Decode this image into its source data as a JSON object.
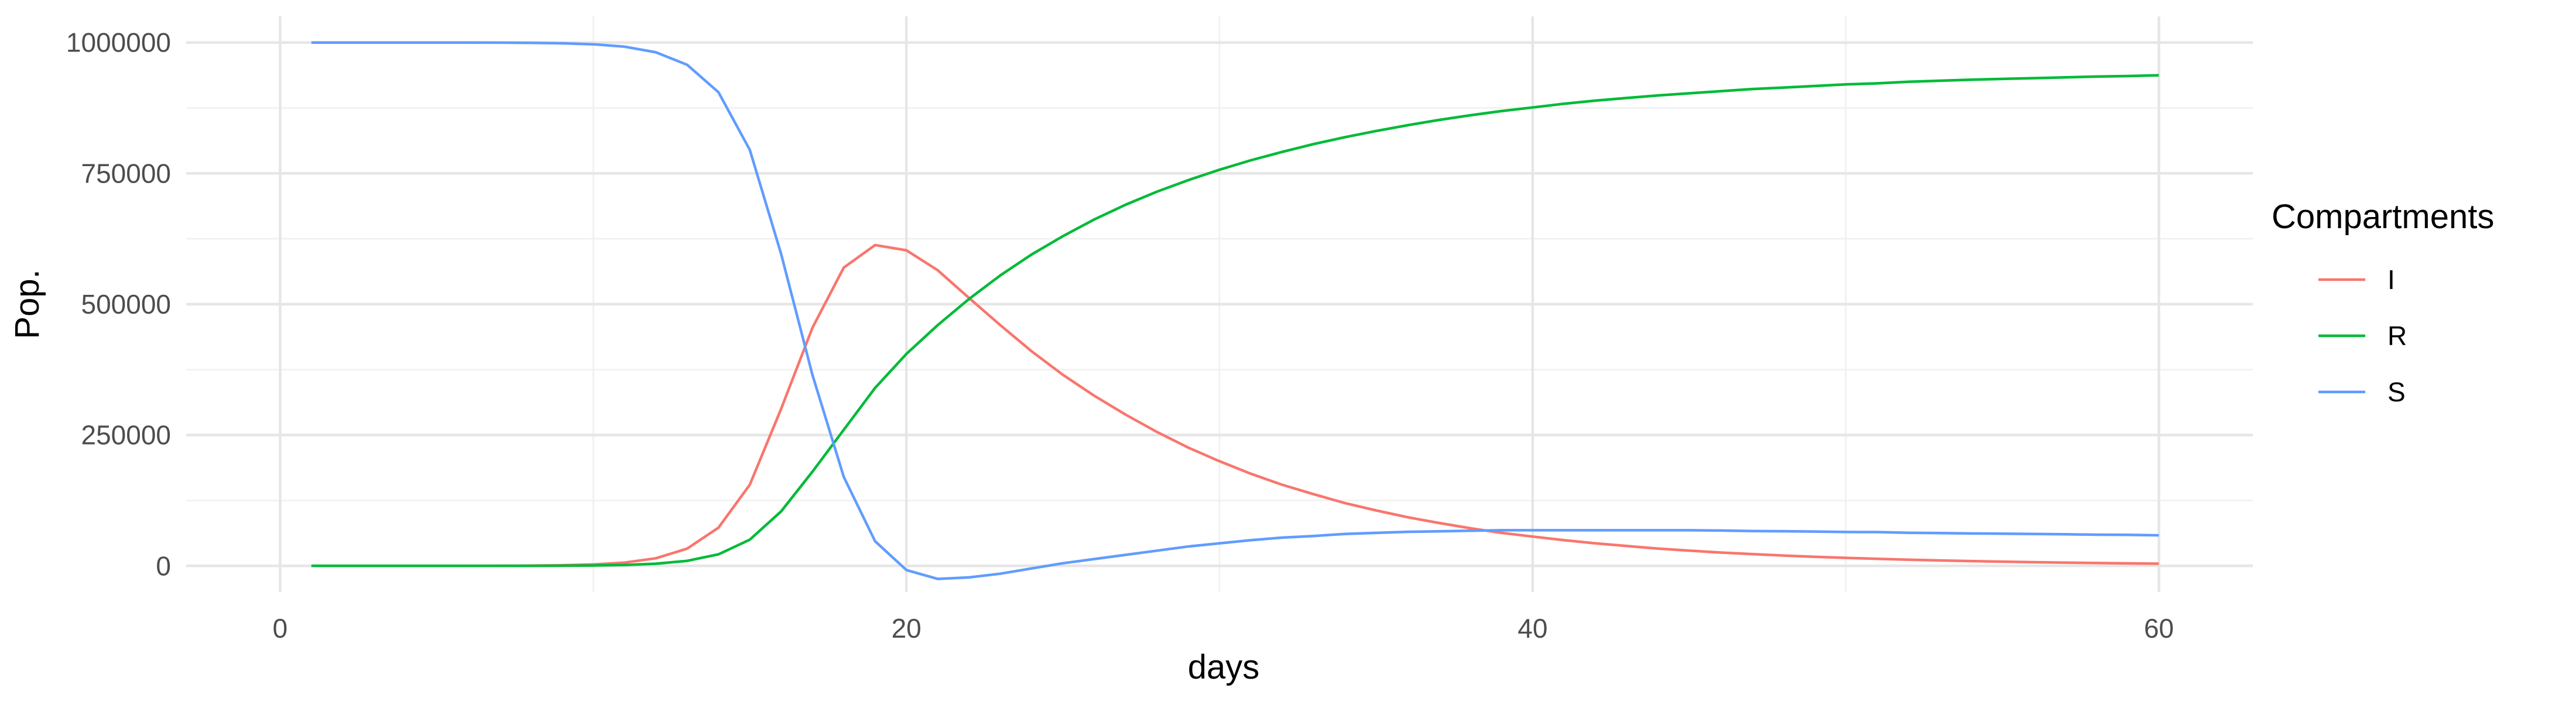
{
  "chart_data": {
    "type": "line",
    "title": "",
    "xlabel": "days",
    "ylabel": "Pop.",
    "xlim": [
      -3,
      63
    ],
    "ylim": [
      -50000,
      1050000
    ],
    "grid": true,
    "x_major_ticks": [
      0,
      20,
      40,
      60
    ],
    "x_minor_ticks": [
      10,
      30,
      50
    ],
    "x_tick_labels": [
      "0",
      "20",
      "40",
      "60"
    ],
    "y_major_ticks": [
      0,
      250000,
      500000,
      750000,
      1000000
    ],
    "y_minor_ticks": [
      125000,
      375000,
      625000,
      875000
    ],
    "y_tick_labels": [
      "0",
      "250000",
      "500000",
      "750000",
      "1000000"
    ],
    "legend": {
      "title": "Compartments",
      "placement": "right"
    },
    "x": [
      1,
      2,
      3,
      4,
      5,
      6,
      7,
      8,
      9,
      10,
      11,
      12,
      13,
      14,
      15,
      16,
      17,
      18,
      19,
      20,
      21,
      22,
      23,
      24,
      25,
      26,
      27,
      28,
      29,
      30,
      31,
      32,
      33,
      34,
      35,
      36,
      37,
      38,
      39,
      40,
      41,
      42,
      43,
      44,
      45,
      46,
      47,
      48,
      49,
      50,
      51,
      52,
      53,
      54,
      55,
      56,
      57,
      58,
      59,
      60
    ],
    "series": [
      {
        "name": "I",
        "color": "#F8766D",
        "values": [
          1,
          2,
          5,
          12,
          30,
          75,
          180,
          440,
          1070,
          2600,
          6200,
          14500,
          33000,
          73000,
          155000,
          300000,
          455000,
          570000,
          613000,
          603000,
          565000,
          512000,
          460000,
          410000,
          365000,
          325000,
          289000,
          256000,
          226000,
          200000,
          176000,
          155000,
          137000,
          120000,
          106000,
          93000,
          82000,
          72000,
          63000,
          56000,
          49000,
          43000,
          38000,
          33000,
          29000,
          25500,
          22500,
          19800,
          17400,
          15300,
          13400,
          11800,
          10400,
          9100,
          8000,
          7000,
          6200,
          5400,
          4800,
          4200
        ]
      },
      {
        "name": "R",
        "color": "#00BA38",
        "values": [
          0,
          0,
          1,
          3,
          8,
          20,
          50,
          120,
          300,
          720,
          1700,
          4100,
          9600,
          22000,
          50000,
          104000,
          180000,
          260000,
          340000,
          405000,
          460000,
          510000,
          555000,
          595000,
          630000,
          662000,
          690000,
          715000,
          737000,
          757000,
          775000,
          791000,
          806000,
          819000,
          831000,
          842000,
          852000,
          861000,
          869000,
          876000,
          883000,
          889000,
          894000,
          899000,
          903000,
          907000,
          911000,
          914000,
          917000,
          920000,
          922000,
          925000,
          927000,
          929000,
          930500,
          932000,
          933500,
          935000,
          936000,
          937500
        ]
      },
      {
        "name": "S",
        "color": "#619CFF",
        "values": [
          999999,
          999998,
          999994,
          999985,
          999962,
          999905,
          999770,
          999440,
          998630,
          996680,
          992100,
          981400,
          957400,
          905000,
          795000,
          596000,
          365000,
          170000,
          47000,
          -8000,
          -25000,
          -22000,
          -15000,
          -5000,
          5000,
          13000,
          21000,
          29000,
          37000,
          43000,
          49000,
          54000,
          57000,
          61000,
          63000,
          65000,
          66000,
          67000,
          68000,
          68000,
          68000,
          68000,
          68000,
          68000,
          68000,
          67500,
          66500,
          66200,
          65600,
          64700,
          64600,
          63200,
          62600,
          61900,
          61500,
          61000,
          60300,
          59600,
          59200,
          58300
        ]
      }
    ]
  }
}
